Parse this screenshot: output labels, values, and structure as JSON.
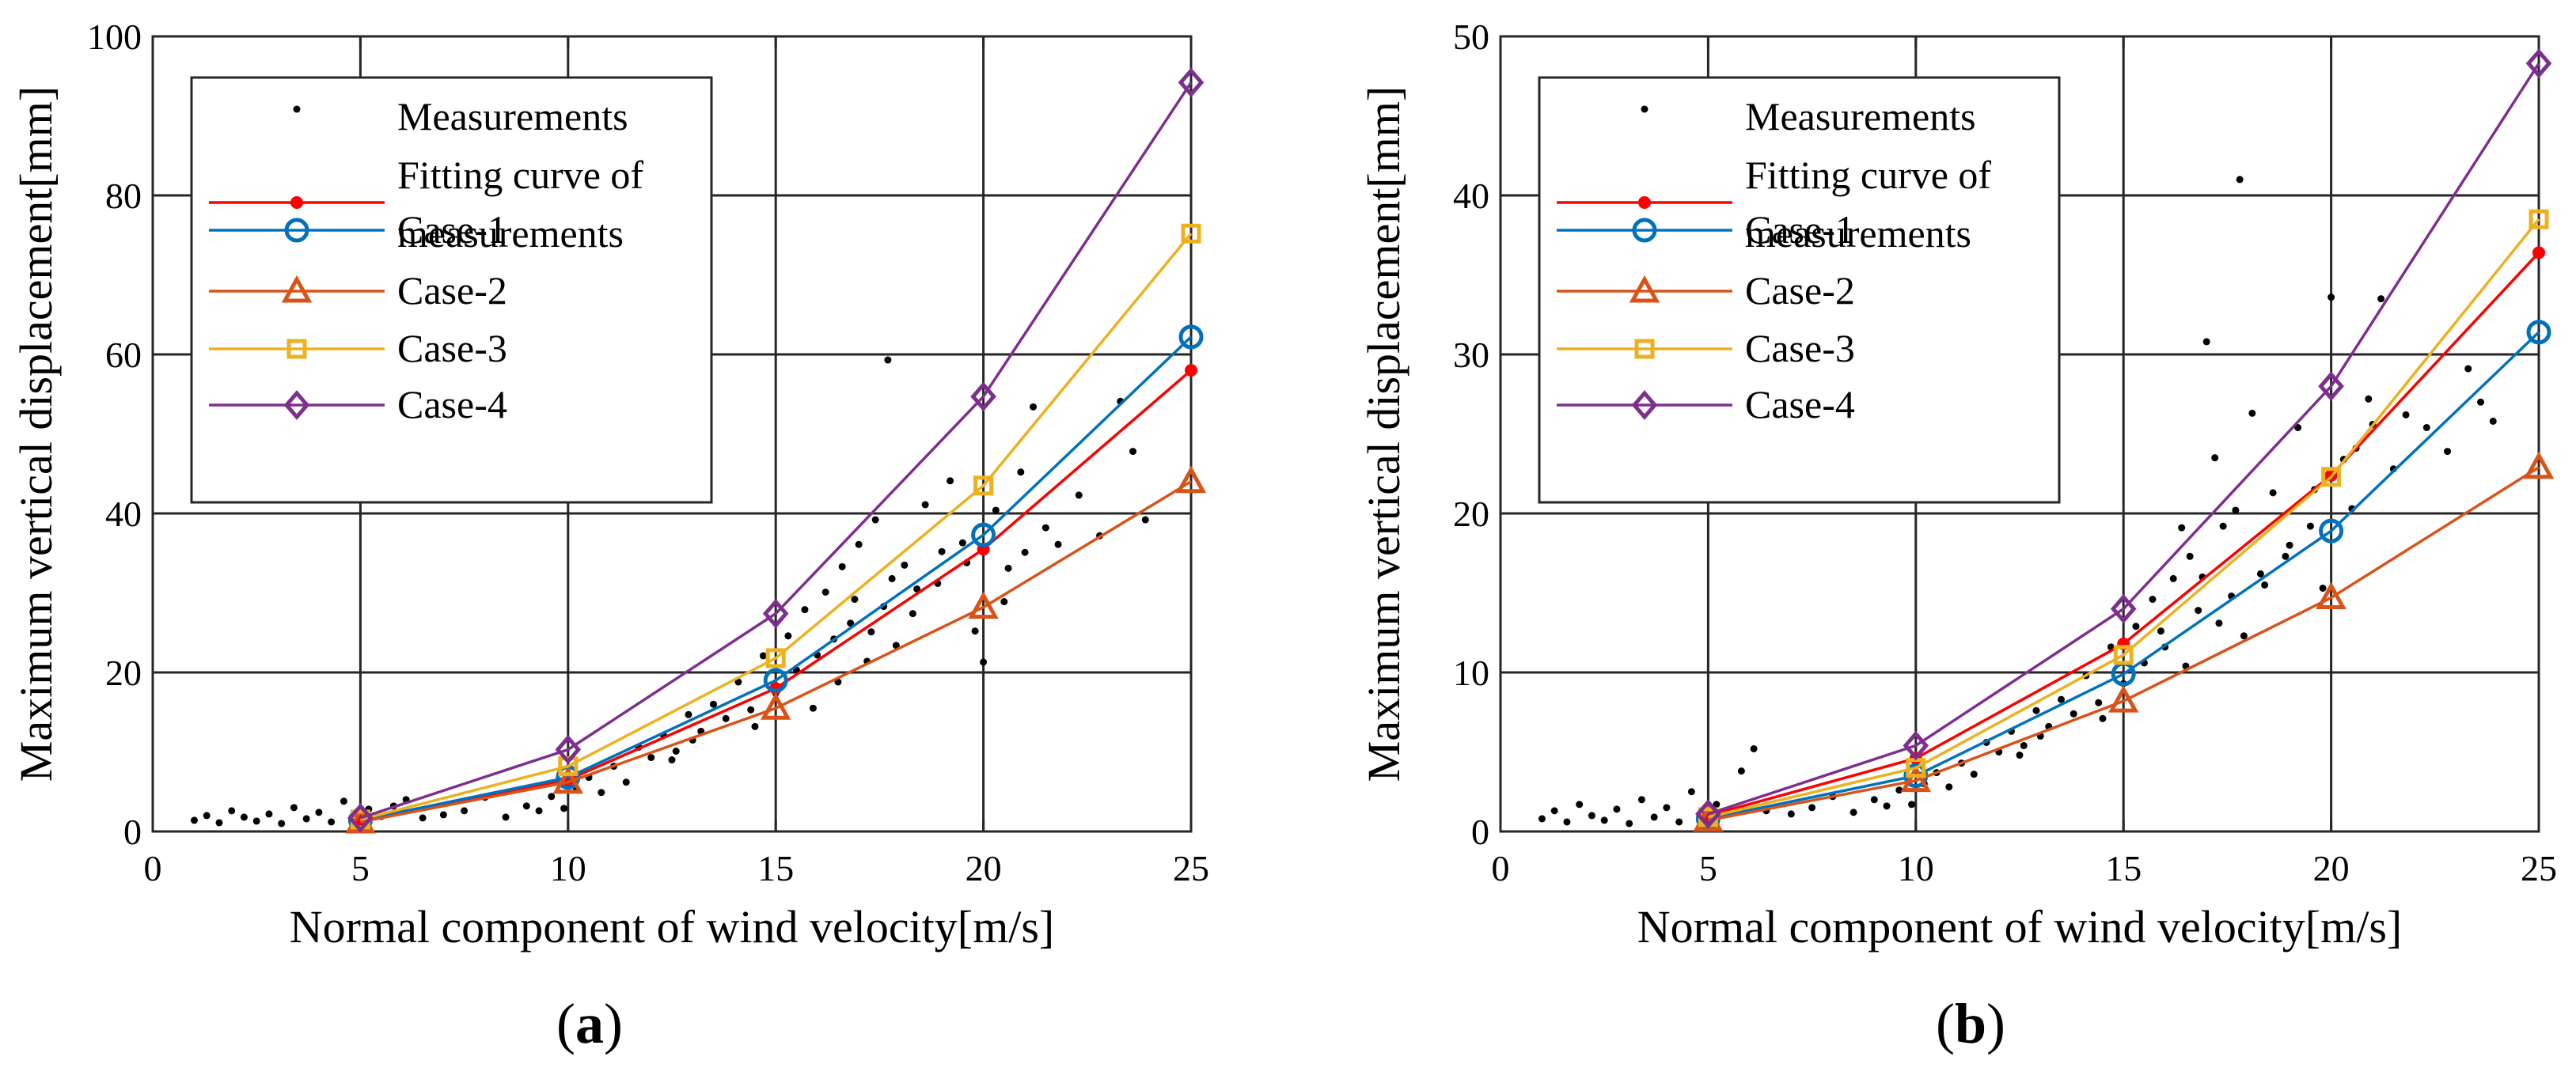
{
  "chart_data": [
    {
      "type": "line",
      "panel_label": "(a)",
      "xlabel": "Normal component of wind velocity[m/s]",
      "ylabel": "Maximum vertical displacement[mm]",
      "xlim": [
        0,
        25
      ],
      "ylim": [
        0,
        100
      ],
      "xticks": [
        0,
        5,
        10,
        15,
        20,
        25
      ],
      "yticks": [
        0,
        20,
        40,
        60,
        80,
        100
      ],
      "grid": true,
      "legend_position": "top-left",
      "legend": [
        "Measurements",
        "Fitting curve of measurements",
        "Case-1",
        "Case-2",
        "Case-3",
        "Case-4"
      ],
      "x": [
        5,
        10,
        15,
        20,
        25
      ],
      "series": [
        {
          "name": "Fitting curve of measurements",
          "color": "#ff0000",
          "marker": "dot",
          "values": [
            1.5,
            6.5,
            18.0,
            35.5,
            58.0
          ]
        },
        {
          "name": "Case-1",
          "color": "#0072bd",
          "marker": "circle",
          "values": [
            1.4,
            6.8,
            19.0,
            37.3,
            62.2
          ]
        },
        {
          "name": "Case-2",
          "color": "#d95319",
          "marker": "triangle",
          "values": [
            1.2,
            6.2,
            15.5,
            28.2,
            44.0
          ]
        },
        {
          "name": "Case-3",
          "color": "#edb120",
          "marker": "square",
          "values": [
            1.5,
            8.2,
            21.8,
            43.5,
            75.2
          ]
        },
        {
          "name": "Case-4",
          "color": "#7e2f8e",
          "marker": "diamond",
          "values": [
            1.7,
            10.3,
            27.4,
            54.7,
            94.2
          ]
        }
      ],
      "measurements": [
        [
          1.0,
          1.4
        ],
        [
          1.3,
          2.0
        ],
        [
          1.6,
          1.1
        ],
        [
          1.9,
          2.6
        ],
        [
          2.2,
          1.8
        ],
        [
          2.5,
          1.3
        ],
        [
          2.8,
          2.2
        ],
        [
          3.1,
          1.0
        ],
        [
          3.4,
          3.0
        ],
        [
          3.7,
          1.6
        ],
        [
          4.0,
          2.4
        ],
        [
          4.3,
          1.2
        ],
        [
          4.6,
          3.8
        ],
        [
          4.9,
          1.5
        ],
        [
          5.2,
          2.8
        ],
        [
          5.5,
          1.9
        ],
        [
          5.8,
          3.2
        ],
        [
          6.1,
          4.0
        ],
        [
          6.5,
          1.7
        ],
        [
          7.0,
          2.1
        ],
        [
          7.5,
          2.6
        ],
        [
          8.0,
          4.3
        ],
        [
          8.5,
          1.8
        ],
        [
          9.0,
          3.2
        ],
        [
          9.3,
          2.6
        ],
        [
          9.6,
          4.4
        ],
        [
          9.9,
          2.9
        ],
        [
          10.2,
          5.2
        ],
        [
          10.5,
          6.8
        ],
        [
          10.8,
          4.9
        ],
        [
          11.1,
          8.2
        ],
        [
          11.4,
          6.2
        ],
        [
          11.7,
          10.6
        ],
        [
          12.0,
          9.3
        ],
        [
          12.3,
          12.1
        ],
        [
          12.6,
          10.1
        ],
        [
          12.9,
          14.7
        ],
        [
          13.2,
          12.6
        ],
        [
          13.5,
          16.0
        ],
        [
          13.8,
          14.2
        ],
        [
          14.1,
          18.8
        ],
        [
          14.4,
          15.3
        ],
        [
          14.7,
          22.1
        ],
        [
          15.0,
          17.4
        ],
        [
          15.3,
          24.6
        ],
        [
          15.5,
          20.3
        ],
        [
          15.7,
          27.9
        ],
        [
          16.0,
          22.2
        ],
        [
          16.2,
          30.1
        ],
        [
          16.4,
          24.2
        ],
        [
          16.6,
          33.3
        ],
        [
          16.8,
          26.2
        ],
        [
          17.0,
          36.1
        ],
        [
          17.2,
          21.4
        ],
        [
          17.4,
          39.2
        ],
        [
          17.6,
          28.3
        ],
        [
          17.7,
          59.3
        ],
        [
          17.9,
          23.4
        ],
        [
          18.1,
          33.5
        ],
        [
          18.3,
          27.4
        ],
        [
          18.6,
          41.1
        ],
        [
          18.9,
          31.2
        ],
        [
          19.2,
          44.1
        ],
        [
          19.5,
          36.3
        ],
        [
          19.8,
          25.2
        ],
        [
          20.0,
          21.3
        ],
        [
          20.3,
          40.4
        ],
        [
          20.6,
          33.1
        ],
        [
          20.9,
          45.2
        ],
        [
          21.2,
          53.4
        ],
        [
          21.5,
          38.2
        ],
        [
          21.8,
          36.1
        ],
        [
          22.3,
          42.3
        ],
        [
          22.8,
          37.2
        ],
        [
          23.3,
          54.1
        ],
        [
          23.6,
          47.8
        ],
        [
          23.9,
          39.2
        ],
        [
          15.9,
          15.5
        ],
        [
          16.5,
          18.8
        ],
        [
          17.3,
          25.1
        ],
        [
          18.4,
          30.5
        ],
        [
          19.0,
          35.2
        ],
        [
          16.9,
          29.2
        ],
        [
          17.8,
          31.8
        ],
        [
          19.6,
          33.8
        ],
        [
          20.5,
          28.9
        ],
        [
          21.0,
          35.1
        ],
        [
          12.5,
          9.0
        ],
        [
          13.0,
          11.5
        ],
        [
          14.5,
          13.2
        ]
      ]
    },
    {
      "type": "line",
      "panel_label": "(b)",
      "xlabel": "Normal component of wind velocity[m/s]",
      "ylabel": "Maximum vertical displacement[mm]",
      "xlim": [
        0,
        25
      ],
      "ylim": [
        0,
        50
      ],
      "xticks": [
        0,
        5,
        10,
        15,
        20,
        25
      ],
      "yticks": [
        0,
        10,
        20,
        30,
        40,
        50
      ],
      "grid": true,
      "legend_position": "top-left",
      "legend": [
        "Measurements",
        "Fitting curve of measurements",
        "Case-1",
        "Case-2",
        "Case-3",
        "Case-4"
      ],
      "x": [
        5,
        10,
        15,
        20,
        25
      ],
      "series": [
        {
          "name": "Fitting curve of measurements",
          "color": "#ff0000",
          "marker": "dot",
          "values": [
            1.0,
            4.6,
            11.8,
            22.4,
            36.4
          ]
        },
        {
          "name": "Case-1",
          "color": "#0072bd",
          "marker": "circle",
          "values": [
            0.8,
            3.5,
            9.9,
            18.9,
            31.4
          ]
        },
        {
          "name": "Case-2",
          "color": "#d95319",
          "marker": "triangle",
          "values": [
            0.7,
            3.2,
            8.2,
            14.7,
            22.9
          ]
        },
        {
          "name": "Case-3",
          "color": "#edb120",
          "marker": "square",
          "values": [
            0.9,
            4.0,
            11.1,
            22.3,
            38.5
          ]
        },
        {
          "name": "Case-4",
          "color": "#7e2f8e",
          "marker": "diamond",
          "values": [
            1.1,
            5.4,
            14.0,
            28.0,
            48.3
          ]
        }
      ],
      "measurements": [
        [
          1.0,
          0.8
        ],
        [
          1.3,
          1.3
        ],
        [
          1.6,
          0.6
        ],
        [
          1.9,
          1.7
        ],
        [
          2.2,
          1.0
        ],
        [
          2.5,
          0.7
        ],
        [
          2.8,
          1.4
        ],
        [
          3.1,
          0.5
        ],
        [
          3.4,
          2.0
        ],
        [
          3.7,
          0.9
        ],
        [
          4.0,
          1.5
        ],
        [
          4.3,
          0.6
        ],
        [
          4.6,
          2.5
        ],
        [
          4.9,
          0.9
        ],
        [
          5.2,
          1.7
        ],
        [
          5.5,
          1.1
        ],
        [
          5.8,
          3.8
        ],
        [
          6.1,
          5.2
        ],
        [
          6.4,
          1.3
        ],
        [
          7.0,
          1.1
        ],
        [
          7.5,
          1.5
        ],
        [
          8.0,
          2.2
        ],
        [
          8.5,
          1.2
        ],
        [
          9.0,
          2.0
        ],
        [
          9.3,
          1.6
        ],
        [
          9.6,
          2.6
        ],
        [
          9.9,
          1.7
        ],
        [
          10.2,
          3.0
        ],
        [
          10.5,
          3.7
        ],
        [
          10.8,
          2.8
        ],
        [
          11.1,
          4.3
        ],
        [
          11.4,
          3.6
        ],
        [
          11.7,
          5.6
        ],
        [
          12.0,
          5.0
        ],
        [
          12.3,
          6.3
        ],
        [
          12.6,
          5.4
        ],
        [
          12.9,
          7.6
        ],
        [
          13.2,
          6.6
        ],
        [
          13.5,
          8.3
        ],
        [
          13.8,
          7.4
        ],
        [
          14.1,
          9.8
        ],
        [
          14.4,
          8.1
        ],
        [
          14.7,
          11.6
        ],
        [
          15.0,
          9.3
        ],
        [
          15.3,
          12.9
        ],
        [
          15.5,
          10.6
        ],
        [
          15.7,
          14.6
        ],
        [
          16.0,
          11.6
        ],
        [
          16.2,
          15.9
        ],
        [
          16.4,
          19.1
        ],
        [
          16.6,
          17.3
        ],
        [
          16.8,
          13.9
        ],
        [
          17.0,
          30.8
        ],
        [
          17.2,
          23.5
        ],
        [
          17.4,
          19.2
        ],
        [
          17.6,
          14.8
        ],
        [
          17.8,
          41.0
        ],
        [
          17.9,
          12.3
        ],
        [
          18.1,
          26.3
        ],
        [
          18.3,
          16.2
        ],
        [
          18.6,
          21.3
        ],
        [
          18.9,
          17.3
        ],
        [
          19.2,
          25.4
        ],
        [
          19.5,
          19.2
        ],
        [
          19.8,
          15.3
        ],
        [
          20.0,
          33.6
        ],
        [
          20.3,
          23.4
        ],
        [
          20.6,
          24.1
        ],
        [
          20.9,
          27.2
        ],
        [
          21.2,
          33.5
        ],
        [
          21.5,
          22.8
        ],
        [
          21.8,
          26.2
        ],
        [
          22.3,
          25.4
        ],
        [
          22.8,
          23.9
        ],
        [
          23.3,
          29.1
        ],
        [
          23.6,
          27.0
        ],
        [
          23.9,
          25.8
        ],
        [
          15.9,
          12.6
        ],
        [
          16.5,
          10.4
        ],
        [
          17.3,
          13.1
        ],
        [
          18.4,
          15.5
        ],
        [
          19.0,
          18.0
        ],
        [
          16.9,
          16.0
        ],
        [
          17.7,
          20.2
        ],
        [
          19.6,
          21.5
        ],
        [
          20.5,
          20.3
        ],
        [
          21.0,
          25.6
        ],
        [
          12.5,
          4.8
        ],
        [
          13.0,
          6.0
        ],
        [
          14.5,
          7.1
        ]
      ]
    }
  ]
}
